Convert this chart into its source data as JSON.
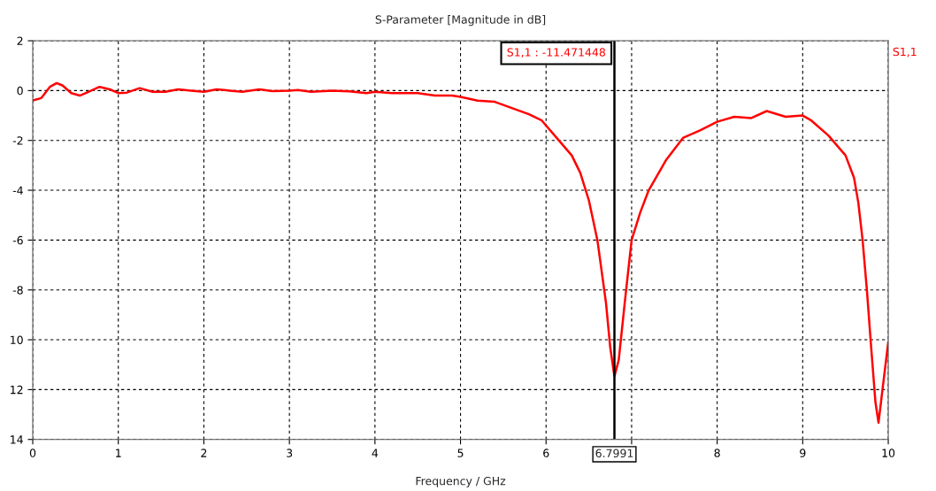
{
  "chart_data": {
    "type": "line",
    "title": "S-Parameter [Magnitude in dB]",
    "xlabel": "Frequency / GHz",
    "x": [
      0,
      0.1,
      0.2,
      0.28,
      0.35,
      0.45,
      0.55,
      0.65,
      0.78,
      0.9,
      1.0,
      1.1,
      1.25,
      1.4,
      1.55,
      1.7,
      1.85,
      2.0,
      2.15,
      2.3,
      2.45,
      2.65,
      2.8,
      3.0,
      3.1,
      3.25,
      3.5,
      3.7,
      3.9,
      4.0,
      4.2,
      4.5,
      4.7,
      4.9,
      5.0,
      5.2,
      5.4,
      5.6,
      5.8,
      5.95,
      6.1,
      6.3,
      6.4,
      6.5,
      6.6,
      6.7,
      6.75,
      6.7991,
      6.85,
      6.92,
      7.0,
      7.1,
      7.2,
      7.4,
      7.6,
      7.8,
      8.0,
      8.2,
      8.4,
      8.58,
      8.8,
      9.0,
      9.1,
      9.3,
      9.5,
      9.6,
      9.65,
      9.7,
      9.75,
      9.8,
      9.85,
      9.886,
      9.95,
      10.0
    ],
    "series": [
      {
        "name": "S1,1",
        "color": "#ff0000",
        "values": [
          -0.4,
          -0.3,
          0.15,
          0.3,
          0.2,
          -0.1,
          -0.2,
          -0.05,
          0.15,
          0.05,
          -0.1,
          -0.08,
          0.1,
          -0.05,
          -0.05,
          0.05,
          0.0,
          -0.05,
          0.05,
          0.0,
          -0.05,
          0.05,
          -0.02,
          0.0,
          0.02,
          -0.05,
          0.0,
          -0.03,
          -0.1,
          -0.05,
          -0.1,
          -0.1,
          -0.2,
          -0.2,
          -0.25,
          -0.4,
          -0.45,
          -0.7,
          -0.95,
          -1.2,
          -1.8,
          -2.6,
          -3.3,
          -4.4,
          -6.0,
          -8.5,
          -10.3,
          -11.47,
          -10.8,
          -8.5,
          -6.0,
          -4.9,
          -4.0,
          -2.8,
          -1.9,
          -1.6,
          -1.25,
          -1.05,
          -1.1,
          -0.82,
          -1.05,
          -1.0,
          -1.2,
          -1.8,
          -2.6,
          -3.5,
          -4.5,
          -6.0,
          -8.0,
          -10.3,
          -12.5,
          -13.33,
          -11.5,
          -10.1
        ]
      }
    ],
    "xlim": [
      0,
      10
    ],
    "xticks": [
      0,
      1,
      2,
      3,
      4,
      5,
      6,
      {
        "value": 7,
        "label": null
      },
      8,
      9,
      10
    ],
    "ylim": [
      -14,
      2
    ],
    "yticks": [
      2,
      0,
      -2,
      -4,
      -6,
      -8,
      {
        "value": -10,
        "label": "10"
      },
      {
        "value": -12,
        "label": "12"
      },
      {
        "value": -14,
        "label": "14"
      }
    ],
    "grid": true,
    "line_style": "solid",
    "marker": "none",
    "ref_lines": [
      {
        "axis": "x",
        "value": 6.7991,
        "label": "6.7991",
        "color": "#000000"
      }
    ],
    "annotations": [
      "S1,1 : -11.471448"
    ]
  }
}
